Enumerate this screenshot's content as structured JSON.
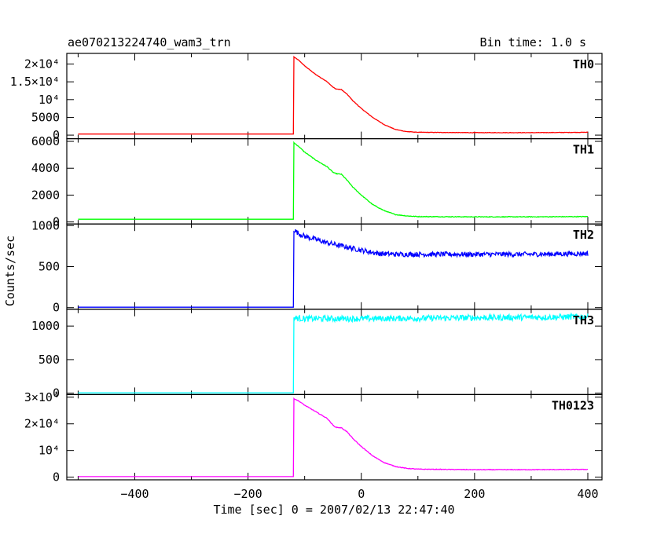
{
  "header": {
    "title": "ae070213224740_wam3_trn",
    "bin_time": "Bin time: 1.0 s"
  },
  "chart_data": {
    "type": "line",
    "x": {
      "label": "Time [sec] 0 = 2007/02/13 22:47:40",
      "range": [
        -520,
        425
      ],
      "ticks": [
        -400,
        -200,
        0,
        200,
        400
      ],
      "tick_labels": [
        "−400",
        "−200",
        "0",
        "200",
        "400"
      ]
    },
    "ylabel": "Counts/sec",
    "grid": false,
    "panels": [
      {
        "name": "TH0",
        "color": "#ff0000",
        "ylim": [
          -1000,
          23000
        ],
        "yticks": [
          0,
          5000,
          10000,
          15000,
          20000
        ],
        "ytick_labels": [
          "0",
          "5000",
          "10⁴",
          "1.5×10⁴",
          "2×10⁴"
        ],
        "baseline": 300,
        "trigger": -120,
        "points": [
          [
            -120,
            300
          ],
          [
            -119,
            22000
          ],
          [
            -110,
            21000
          ],
          [
            -100,
            19500
          ],
          [
            -80,
            17000
          ],
          [
            -60,
            15000
          ],
          [
            -50,
            13500
          ],
          [
            -45,
            13000
          ],
          [
            -35,
            12800
          ],
          [
            -25,
            11500
          ],
          [
            -15,
            9700
          ],
          [
            0,
            7500
          ],
          [
            20,
            5000
          ],
          [
            40,
            3000
          ],
          [
            60,
            1600
          ],
          [
            80,
            1000
          ],
          [
            100,
            800
          ],
          [
            200,
            700
          ],
          [
            300,
            700
          ],
          [
            400,
            800
          ]
        ],
        "noise": 60
      },
      {
        "name": "TH1",
        "color": "#00ff00",
        "ylim": [
          -150,
          6200
        ],
        "yticks": [
          0,
          2000,
          4000,
          6000
        ],
        "ytick_labels": [
          "0",
          "2000",
          "4000",
          "6000"
        ],
        "baseline": 200,
        "trigger": -120,
        "points": [
          [
            -120,
            200
          ],
          [
            -119,
            5900
          ],
          [
            -110,
            5600
          ],
          [
            -100,
            5200
          ],
          [
            -80,
            4600
          ],
          [
            -60,
            4100
          ],
          [
            -50,
            3700
          ],
          [
            -45,
            3600
          ],
          [
            -35,
            3550
          ],
          [
            -25,
            3100
          ],
          [
            -15,
            2600
          ],
          [
            0,
            2000
          ],
          [
            20,
            1300
          ],
          [
            40,
            850
          ],
          [
            60,
            550
          ],
          [
            80,
            450
          ],
          [
            100,
            400
          ],
          [
            200,
            380
          ],
          [
            300,
            380
          ],
          [
            400,
            400
          ]
        ],
        "noise": 25
      },
      {
        "name": "TH2",
        "color": "#0000ff",
        "ylim": [
          -20,
          1020
        ],
        "yticks": [
          0,
          500,
          1000
        ],
        "ytick_labels": [
          "0",
          "500",
          "1000"
        ],
        "baseline": 5,
        "trigger": -120,
        "points": [
          [
            -120,
            5
          ],
          [
            -119,
            950
          ],
          [
            -110,
            900
          ],
          [
            -100,
            870
          ],
          [
            -80,
            830
          ],
          [
            -60,
            790
          ],
          [
            -40,
            760
          ],
          [
            -20,
            730
          ],
          [
            0,
            700
          ],
          [
            30,
            660
          ],
          [
            60,
            650
          ],
          [
            100,
            650
          ],
          [
            200,
            650
          ],
          [
            300,
            650
          ],
          [
            400,
            660
          ]
        ],
        "noise": 30
      },
      {
        "name": "TH3",
        "color": "#00ffff",
        "ylim": [
          -20,
          1250
        ],
        "yticks": [
          0,
          500,
          1000
        ],
        "ytick_labels": [
          "0",
          "500",
          "1000"
        ],
        "baseline": 5,
        "trigger": -120,
        "points": [
          [
            -120,
            5
          ],
          [
            -119,
            1120
          ],
          [
            -100,
            1110
          ],
          [
            0,
            1110
          ],
          [
            100,
            1115
          ],
          [
            200,
            1125
          ],
          [
            300,
            1130
          ],
          [
            400,
            1140
          ]
        ],
        "noise": 45
      },
      {
        "name": "TH0123",
        "color": "#ff00ff",
        "ylim": [
          -1000,
          31000
        ],
        "yticks": [
          0,
          10000,
          20000,
          30000
        ],
        "ytick_labels": [
          "0",
          "10⁴",
          "2×10⁴",
          "3×10⁴"
        ],
        "baseline": 200,
        "trigger": -120,
        "points": [
          [
            -120,
            200
          ],
          [
            -119,
            29500
          ],
          [
            -110,
            28500
          ],
          [
            -100,
            27000
          ],
          [
            -80,
            24500
          ],
          [
            -60,
            22000
          ],
          [
            -50,
            19500
          ],
          [
            -45,
            18700
          ],
          [
            -35,
            18500
          ],
          [
            -25,
            17000
          ],
          [
            -15,
            14500
          ],
          [
            0,
            11500
          ],
          [
            20,
            8000
          ],
          [
            40,
            5500
          ],
          [
            60,
            4000
          ],
          [
            80,
            3300
          ],
          [
            100,
            3000
          ],
          [
            200,
            2800
          ],
          [
            300,
            2800
          ],
          [
            400,
            2900
          ]
        ],
        "noise": 110
      }
    ]
  }
}
